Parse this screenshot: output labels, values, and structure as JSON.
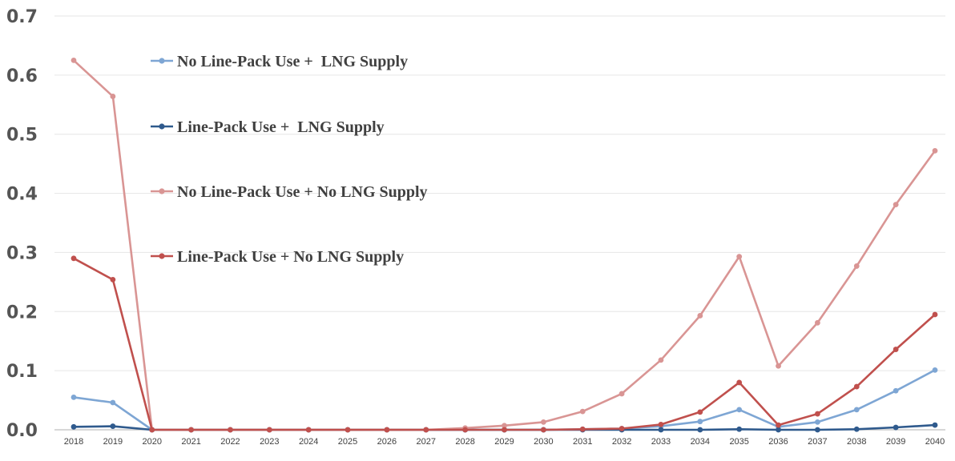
{
  "chart_data": {
    "type": "line",
    "title": "",
    "xlabel": "",
    "ylabel": "",
    "x": [
      "2018",
      "2019",
      "2020",
      "2021",
      "2022",
      "2023",
      "2024",
      "2025",
      "2026",
      "2027",
      "2028",
      "2029",
      "2030",
      "2031",
      "2032",
      "2033",
      "2034",
      "2035",
      "2036",
      "2037",
      "2038",
      "2039",
      "2040"
    ],
    "ylim": [
      0,
      0.7
    ],
    "yticks": [
      "0.0",
      "0.1",
      "0.2",
      "0.3",
      "0.4",
      "0.5",
      "0.6",
      "0.7"
    ],
    "grid": "horizontal",
    "legend_position": "upper-left",
    "series": [
      {
        "name": "No Line-Pack Use +  LNG Supply",
        "color": "#7ea6d4",
        "values": [
          0.055,
          0.046,
          0,
          0,
          0,
          0,
          0,
          0,
          0,
          0,
          0,
          0,
          0,
          0.001,
          0.002,
          0.006,
          0.014,
          0.034,
          0.005,
          0.013,
          0.034,
          0.066,
          0.101
        ]
      },
      {
        "name": "Line-Pack Use +  LNG Supply",
        "color": "#2f5a8d",
        "values": [
          0.005,
          0.006,
          0,
          0,
          0,
          0,
          0,
          0,
          0,
          0,
          0,
          0,
          0,
          0,
          0,
          0,
          0,
          0.001,
          0,
          0,
          0.001,
          0.004,
          0.008
        ]
      },
      {
        "name": "No Line-Pack Use + No LNG Supply",
        "color": "#d99594",
        "values": [
          0.625,
          0.564,
          0,
          0,
          0,
          0,
          0,
          0,
          0,
          0,
          0.003,
          0.007,
          0.013,
          0.031,
          0.061,
          0.118,
          0.193,
          0.293,
          0.108,
          0.181,
          0.277,
          0.381,
          0.472
        ]
      },
      {
        "name": "Line-Pack Use + No LNG Supply",
        "color": "#c0504d",
        "values": [
          0.29,
          0.254,
          0,
          0,
          0,
          0,
          0,
          0,
          0,
          0,
          0,
          0,
          0,
          0.001,
          0.002,
          0.009,
          0.03,
          0.08,
          0.008,
          0.027,
          0.073,
          0.136,
          0.195
        ]
      }
    ]
  }
}
